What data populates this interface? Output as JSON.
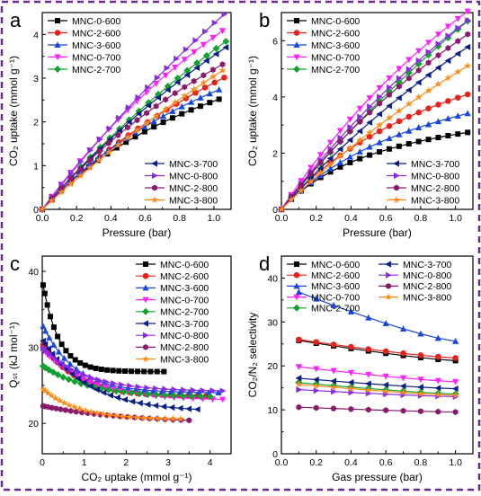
{
  "panel_letters": [
    "a",
    "b",
    "c",
    "d"
  ],
  "chart_data": [
    {
      "panel": "a",
      "type": "line",
      "xlabel": "Pressure (bar)",
      "ylabel": "CO₂ uptake (mmol g⁻¹)",
      "xlim": [
        0,
        1.1
      ],
      "ylim": [
        0,
        4.5
      ],
      "xticks": [
        "0.0",
        "0.2",
        "0.4",
        "0.6",
        "0.8",
        "1.0"
      ],
      "yticks": [
        "0",
        "1",
        "2",
        "3",
        "4"
      ],
      "legend_groups": [
        {
          "placement": "top-left",
          "series": [
            "MNC-0-600",
            "MNC-2-600",
            "MNC-3-600",
            "MNC-0-700",
            "MNC-2-700"
          ]
        },
        {
          "placement": "bottom-right",
          "series": [
            "MNC-3-700",
            "MNC-0-800",
            "MNC-2-800",
            "MNC-3-800"
          ]
        }
      ],
      "series": [
        {
          "name": "MNC-0-600",
          "color": "#000000",
          "marker": "square",
          "a": 4.26,
          "b": 0.72,
          "xmax": 1.03
        },
        {
          "name": "MNC-2-600",
          "color": "#e8221b",
          "marker": "circle",
          "a": 4.05,
          "b": 0.4,
          "xmax": 1.06
        },
        {
          "name": "MNC-3-600",
          "color": "#1846e0",
          "marker": "triangle-up",
          "a": 4.3,
          "b": 0.6,
          "xmax": 1.03
        },
        {
          "name": "MNC-0-700",
          "color": "#ff1fff",
          "marker": "triangle-down",
          "a": 5.4,
          "b": 0.37,
          "xmax": 1.05
        },
        {
          "name": "MNC-2-700",
          "color": "#12a02e",
          "marker": "diamond",
          "a": 4.55,
          "b": 0.25,
          "xmax": 1.07
        },
        {
          "name": "MNC-3-700",
          "color": "#0a1f85",
          "marker": "triangle-left",
          "a": 4.5,
          "b": 0.28,
          "xmax": 1.07
        },
        {
          "name": "MNC-0-800",
          "color": "#8a2be2",
          "marker": "triangle-right",
          "a": 5.1,
          "b": 0.2,
          "xmax": 1.06
        },
        {
          "name": "MNC-2-800",
          "color": "#8b1a6b",
          "marker": "hexagon",
          "a": 4.55,
          "b": 0.42,
          "xmax": 1.05
        },
        {
          "name": "MNC-3-800",
          "color": "#ff8c1a",
          "marker": "star",
          "a": 3.6,
          "b": 0.18,
          "xmax": 1.05
        }
      ]
    },
    {
      "panel": "b",
      "type": "line",
      "xlabel": "Pressure (bar)",
      "ylabel": "CO₂ uptake (mmol g⁻¹)",
      "xlim": [
        0,
        1.1
      ],
      "ylim": [
        0,
        7
      ],
      "xticks": [
        "0.0",
        "0.2",
        "0.4",
        "0.6",
        "0.8",
        "1.0"
      ],
      "yticks": [
        "0",
        "2",
        "4",
        "6"
      ],
      "legend_groups": [
        {
          "placement": "top-left",
          "series": [
            "MNC-0-600",
            "MNC-2-600",
            "MNC-3-600",
            "MNC-0-700",
            "MNC-2-700"
          ]
        },
        {
          "placement": "bottom-right",
          "series": [
            "MNC-3-700",
            "MNC-0-800",
            "MNC-2-800",
            "MNC-3-800"
          ]
        }
      ],
      "series": [
        {
          "name": "MNC-0-600",
          "color": "#000000",
          "marker": "square",
          "a": 6.8,
          "b": 1.55,
          "xmax": 1.07
        },
        {
          "name": "MNC-2-600",
          "color": "#e8221b",
          "marker": "circle",
          "a": 7.3,
          "b": 0.85,
          "xmax": 1.07
        },
        {
          "name": "MNC-3-600",
          "color": "#1846e0",
          "marker": "triangle-up",
          "a": 6.6,
          "b": 1.0,
          "xmax": 1.07
        },
        {
          "name": "MNC-0-700",
          "color": "#ff1fff",
          "marker": "triangle-down",
          "a": 9.4,
          "b": 0.4,
          "xmax": 1.07
        },
        {
          "name": "MNC-2-700",
          "color": "#12a02e",
          "marker": "diamond",
          "a": 7.6,
          "b": 0.2,
          "xmax": 1.07
        },
        {
          "name": "MNC-3-700",
          "color": "#0a1f85",
          "marker": "triangle-left",
          "a": 6.9,
          "b": 0.26,
          "xmax": 1.07
        },
        {
          "name": "MNC-0-800",
          "color": "#8a2be2",
          "marker": "triangle-right",
          "a": 8.3,
          "b": 0.3,
          "xmax": 1.07
        },
        {
          "name": "MNC-2-800",
          "color": "#8b1a6b",
          "marker": "hexagon",
          "a": 8.0,
          "b": 0.35,
          "xmax": 1.07
        },
        {
          "name": "MNC-3-800",
          "color": "#ff8c1a",
          "marker": "star",
          "a": 6.1,
          "b": 0.26,
          "xmax": 1.07
        }
      ]
    },
    {
      "panel": "c",
      "type": "line",
      "xlabel": "CO₂ uptake (mmol g⁻¹)",
      "ylabel": "Qₛₜ (kJ mol⁻¹)",
      "xlim": [
        0,
        4.5
      ],
      "ylim": [
        16,
        42
      ],
      "xticks": [
        "0",
        "1",
        "2",
        "3",
        "4"
      ],
      "yticks": [
        "20",
        "30",
        "40"
      ],
      "legend_groups": [
        {
          "placement": "top-right",
          "series": [
            "MNC-0-600",
            "MNC-2-600",
            "MNC-3-600",
            "MNC-0-700",
            "MNC-2-700",
            "MNC-3-700",
            "MNC-0-800",
            "MNC-2-800",
            "MNC-3-800"
          ]
        }
      ],
      "series": [
        {
          "name": "MNC-0-600",
          "color": "#000000",
          "marker": "square",
          "y0": 38.8,
          "yinf": 26.8,
          "k": 2.6,
          "xmax": 2.9
        },
        {
          "name": "MNC-2-600",
          "color": "#e8221b",
          "marker": "circle",
          "y0": 30.5,
          "yinf": 23.5,
          "k": 1.2,
          "xmax": 3.9
        },
        {
          "name": "MNC-3-600",
          "color": "#1846e0",
          "marker": "triangle-up",
          "y0": 33.0,
          "yinf": 24.0,
          "k": 1.3,
          "xmax": 4.2
        },
        {
          "name": "MNC-0-700",
          "color": "#ff1fff",
          "marker": "triangle-down",
          "y0": 29.8,
          "yinf": 23.0,
          "k": 0.9,
          "xmax": 4.3
        },
        {
          "name": "MNC-2-700",
          "color": "#12a02e",
          "marker": "diamond",
          "y0": 27.6,
          "yinf": 23.4,
          "k": 0.9,
          "xmax": 4.0
        },
        {
          "name": "MNC-3-700",
          "color": "#0a1f85",
          "marker": "triangle-left",
          "y0": 31.0,
          "yinf": 21.5,
          "k": 0.9,
          "xmax": 3.7
        },
        {
          "name": "MNC-0-800",
          "color": "#8a2be2",
          "marker": "triangle-right",
          "y0": 30.0,
          "yinf": 24.2,
          "k": 1.0,
          "xmax": 4.3
        },
        {
          "name": "MNC-2-800",
          "color": "#8b1a6b",
          "marker": "hexagon",
          "y0": 22.3,
          "yinf": 20.0,
          "k": 0.5,
          "xmax": 3.5
        },
        {
          "name": "MNC-3-800",
          "color": "#ff8c1a",
          "marker": "star",
          "y0": 24.6,
          "yinf": 20.5,
          "k": 1.2,
          "xmax": 3.3
        }
      ]
    },
    {
      "panel": "d",
      "type": "line",
      "xlabel": "Gas pressure (bar)",
      "ylabel": "CO₂/N₂ selectivity",
      "xlim": [
        0,
        1.1
      ],
      "ylim": [
        0,
        45
      ],
      "xticks": [
        "0.0",
        "0.2",
        "0.4",
        "0.6",
        "0.8",
        "1.0"
      ],
      "yticks": [
        "0",
        "10",
        "20",
        "30",
        "40"
      ],
      "legend_groups": [
        {
          "placement": "top-left-col1",
          "series": [
            "MNC-0-600",
            "MNC-2-600",
            "MNC-3-600",
            "MNC-0-700",
            "MNC-2-700"
          ]
        },
        {
          "placement": "top-left-col2",
          "series": [
            "MNC-3-700",
            "MNC-0-800",
            "MNC-2-800",
            "MNC-3-800"
          ]
        }
      ],
      "series": [
        {
          "name": "MNC-0-600",
          "color": "#000000",
          "marker": "square",
          "y_start": 25.8,
          "y_end": 21.2
        },
        {
          "name": "MNC-2-600",
          "color": "#e8221b",
          "marker": "circle",
          "y_start": 26.0,
          "y_end": 21.8
        },
        {
          "name": "MNC-3-600",
          "color": "#1846e0",
          "marker": "triangle-up",
          "y_start": 36.8,
          "y_end": 25.6
        },
        {
          "name": "MNC-0-700",
          "color": "#ff1fff",
          "marker": "triangle-down",
          "y_start": 19.8,
          "y_end": 16.4
        },
        {
          "name": "MNC-2-700",
          "color": "#12a02e",
          "marker": "diamond",
          "y_start": 16.2,
          "y_end": 13.6
        },
        {
          "name": "MNC-3-700",
          "color": "#0a1f85",
          "marker": "triangle-left",
          "y_start": 17.2,
          "y_end": 14.8
        },
        {
          "name": "MNC-0-800",
          "color": "#8a2be2",
          "marker": "triangle-right",
          "y_start": 14.6,
          "y_end": 13.0
        },
        {
          "name": "MNC-2-800",
          "color": "#8b1a6b",
          "marker": "hexagon",
          "y_start": 10.6,
          "y_end": 9.5
        },
        {
          "name": "MNC-3-800",
          "color": "#ff8c1a",
          "marker": "star",
          "y_start": 15.8,
          "y_end": 13.3
        }
      ]
    }
  ]
}
